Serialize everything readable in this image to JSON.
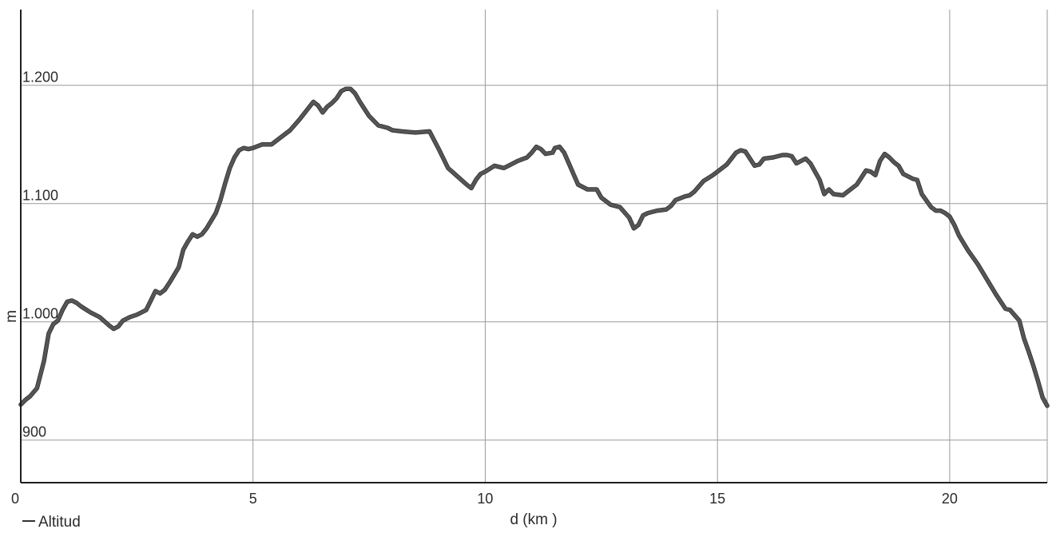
{
  "chart_data": {
    "type": "line",
    "xlabel": "d (km )",
    "ylabel": "m",
    "xlim": [
      0,
      22.1
    ],
    "ylim": [
      864,
      1264
    ],
    "xticks": [
      0,
      5,
      10,
      15,
      20
    ],
    "xtick_labels": [
      "0",
      "5",
      "10",
      "15",
      "20"
    ],
    "yticks": [
      900,
      1000,
      1100,
      1200
    ],
    "ytick_labels": [
      "900",
      "1.000",
      "1.100",
      "1.200"
    ],
    "grid": true,
    "legend_position": "bottom-left",
    "series": [
      {
        "name": "Altitud",
        "color": "#555555",
        "x": [
          0.0,
          0.1,
          0.2,
          0.35,
          0.5,
          0.6,
          0.7,
          0.8,
          0.9,
          1.0,
          1.1,
          1.2,
          1.3,
          1.5,
          1.7,
          1.9,
          2.0,
          2.1,
          2.2,
          2.35,
          2.5,
          2.7,
          2.8,
          2.9,
          3.0,
          3.1,
          3.2,
          3.4,
          3.5,
          3.6,
          3.7,
          3.8,
          3.9,
          4.0,
          4.2,
          4.3,
          4.4,
          4.5,
          4.6,
          4.7,
          4.8,
          4.9,
          5.0,
          5.2,
          5.4,
          5.6,
          5.8,
          6.0,
          6.2,
          6.3,
          6.4,
          6.5,
          6.6,
          6.7,
          6.8,
          6.9,
          7.0,
          7.1,
          7.2,
          7.3,
          7.5,
          7.7,
          7.9,
          8.0,
          8.2,
          8.5,
          8.8,
          9.0,
          9.2,
          9.4,
          9.6,
          9.7,
          9.8,
          9.9,
          10.0,
          10.2,
          10.4,
          10.5,
          10.7,
          10.9,
          11.0,
          11.1,
          11.2,
          11.3,
          11.45,
          11.5,
          11.6,
          11.7,
          11.8,
          11.9,
          12.0,
          12.2,
          12.4,
          12.5,
          12.7,
          12.9,
          13.1,
          13.2,
          13.3,
          13.4,
          13.5,
          13.7,
          13.9,
          14.0,
          14.1,
          14.3,
          14.4,
          14.5,
          14.7,
          14.9,
          15.0,
          15.2,
          15.3,
          15.4,
          15.5,
          15.6,
          15.7,
          15.8,
          15.9,
          16.0,
          16.2,
          16.4,
          16.5,
          16.6,
          16.7,
          16.8,
          16.9,
          17.0,
          17.2,
          17.3,
          17.4,
          17.5,
          17.7,
          17.8,
          18.0,
          18.1,
          18.2,
          18.3,
          18.4,
          18.5,
          18.6,
          18.7,
          18.8,
          18.9,
          19.0,
          19.2,
          19.3,
          19.4,
          19.6,
          19.7,
          19.8,
          19.9,
          20.0,
          20.1,
          20.2,
          20.4,
          20.6,
          20.8,
          21.0,
          21.2,
          21.3,
          21.5,
          21.6,
          21.7,
          21.8,
          21.9,
          22.0,
          22.1
        ],
        "y": [
          930,
          934,
          937,
          944,
          967,
          990,
          998,
          1001,
          1010,
          1017,
          1018,
          1016,
          1013,
          1008,
          1004,
          997,
          994,
          996,
          1001,
          1004,
          1006,
          1010,
          1018,
          1026,
          1024,
          1027,
          1033,
          1046,
          1061,
          1068,
          1074,
          1072,
          1074,
          1079,
          1092,
          1103,
          1117,
          1130,
          1139,
          1145,
          1147,
          1146,
          1147,
          1150,
          1150,
          1156,
          1162,
          1171,
          1181,
          1186,
          1183,
          1177,
          1182,
          1185,
          1189,
          1195,
          1197,
          1197,
          1193,
          1186,
          1174,
          1166,
          1164,
          1162,
          1161,
          1160,
          1161,
          1146,
          1130,
          1123,
          1116,
          1113,
          1120,
          1125,
          1127,
          1132,
          1130,
          1132,
          1136,
          1139,
          1143,
          1148,
          1146,
          1142,
          1143,
          1147,
          1148,
          1143,
          1134,
          1125,
          1116,
          1112,
          1112,
          1105,
          1099,
          1097,
          1088,
          1079,
          1082,
          1090,
          1092,
          1094,
          1095,
          1098,
          1103,
          1106,
          1107,
          1110,
          1119,
          1124,
          1127,
          1133,
          1138,
          1143,
          1145,
          1144,
          1138,
          1132,
          1133,
          1138,
          1139,
          1141,
          1141,
          1140,
          1134,
          1136,
          1138,
          1134,
          1120,
          1108,
          1112,
          1108,
          1107,
          1110,
          1116,
          1122,
          1128,
          1127,
          1124,
          1136,
          1142,
          1139,
          1135,
          1132,
          1125,
          1121,
          1120,
          1108,
          1097,
          1094,
          1094,
          1092,
          1089,
          1082,
          1073,
          1060,
          1049,
          1036,
          1023,
          1011,
          1010,
          1001,
          986,
          975,
          963,
          950,
          936,
          929
        ]
      }
    ]
  }
}
